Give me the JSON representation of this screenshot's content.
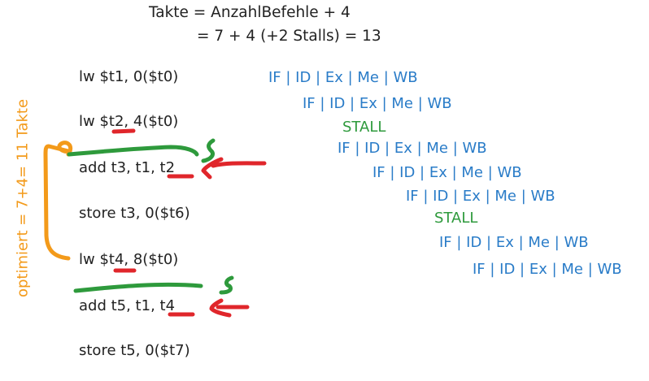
{
  "formula": {
    "line1": "Takte = AnzahlBefehle + 4",
    "line2": "= 7 + 4 (+2 Stalls) = 13"
  },
  "instructions": [
    "lw $t1, 0($t0)",
    "lw $t2, 4($t0)",
    "add t3, t1, t2",
    "store t3, 0($t6)",
    "lw $t4, 8($t0)",
    "add t5, t1, t4",
    "store t5, 0($t7)"
  ],
  "pipeline": [
    "IF | ID | Ex | Me | WB",
    "IF | ID | Ex | Me | WB",
    "STALL",
    "IF | ID | Ex | Me | WB",
    "IF | ID | Ex | Me | WB",
    "IF | ID | Ex | Me | WB",
    "STALL",
    "IF | ID | Ex | Me | WB",
    "IF | ID | Ex | Me | WB"
  ],
  "optimized_note": "optimiert = 7+4= 11 Takte",
  "colors": {
    "text": "#222222",
    "pipeline": "#2a7cc8",
    "stall": "#2e9a3c",
    "annotation_orange": "#f39a1a",
    "annotation_red": "#e0262b",
    "annotation_green": "#2e9a3c"
  }
}
